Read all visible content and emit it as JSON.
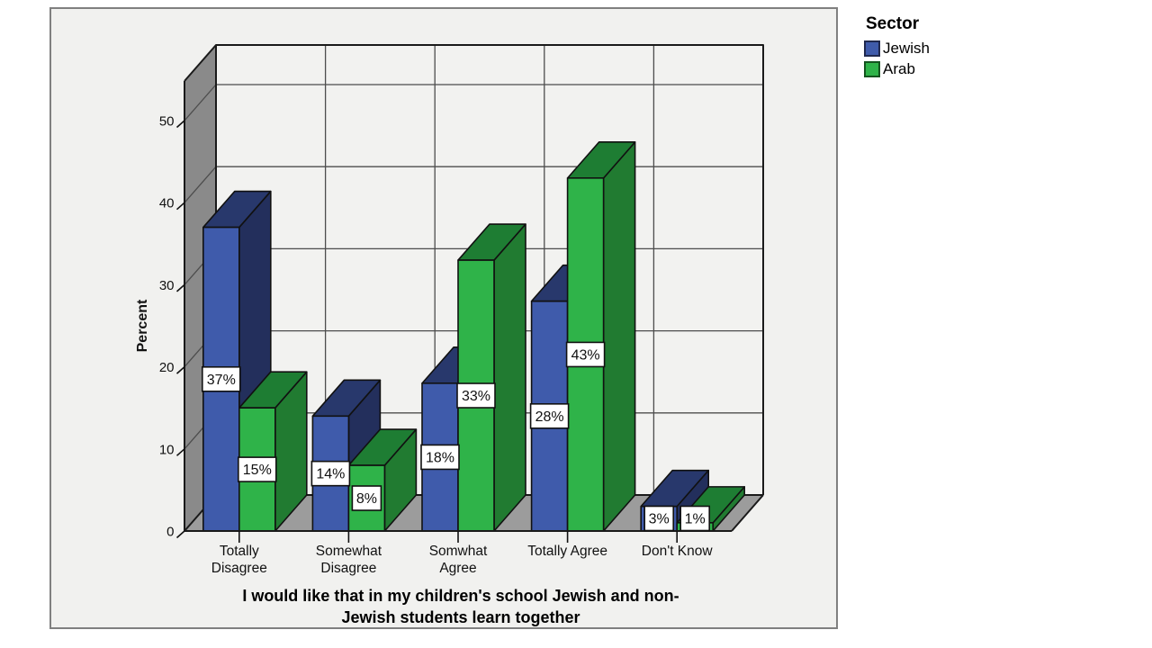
{
  "window": {
    "background": "#FFFFFF",
    "panel_background": "#F1F1EF",
    "panel_border": "#808080"
  },
  "legend": {
    "title": "Sector",
    "items": [
      {
        "label": "Jewish",
        "color": "#3F5BAB",
        "border": "#20294F"
      },
      {
        "label": "Arab",
        "color": "#2FB349",
        "border": "#14541F"
      }
    ]
  },
  "chart_data": {
    "type": "bar",
    "projection": "3d-clustered",
    "title_lines": [
      "I would like that in my children's school Jewish and non-",
      "Jewish students learn together"
    ],
    "ylabel": "Percent",
    "yticks": [
      0,
      10,
      20,
      30,
      40,
      50
    ],
    "ylim": [
      0,
      55
    ],
    "grid": true,
    "legend_position": "top-right",
    "categories": [
      [
        "Totally",
        "Disagree"
      ],
      [
        "Somewhat",
        "Disagree"
      ],
      [
        "Somwhat",
        "Agree"
      ],
      [
        "Totally Agree"
      ],
      [
        "Don't Know"
      ]
    ],
    "series": [
      {
        "name": "Jewish",
        "values": [
          37,
          14,
          18,
          28,
          3
        ],
        "labels": [
          "37%",
          "14%",
          "18%",
          "28%",
          "3%"
        ],
        "front": "#3F5BAB",
        "top": "#28386C",
        "side": "#232F5C"
      },
      {
        "name": "Arab",
        "values": [
          15,
          8,
          33,
          43,
          1
        ],
        "labels": [
          "15%",
          "8%",
          "33%",
          "43%",
          "1%"
        ],
        "front": "#2FB349",
        "top": "#1E7D33",
        "side": "#217B31"
      }
    ],
    "value_label_suffix": "%",
    "walls": {
      "left": "#8A8A8A",
      "floor": "#9C9C9C",
      "back": "#F2F2F0",
      "grid": "#4D4D4D",
      "frame": "#1A1A1A"
    }
  }
}
